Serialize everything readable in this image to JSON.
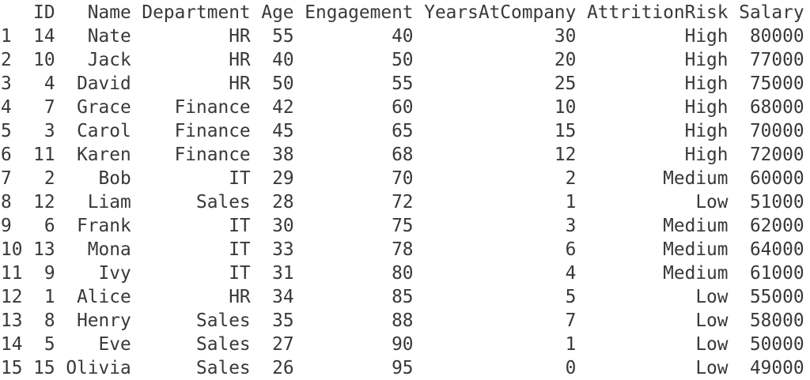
{
  "colors": {
    "text": "#383838",
    "background": "#ffffff"
  },
  "table": {
    "index_header": "",
    "columns": [
      "ID",
      "Name",
      "Department",
      "Age",
      "Engagement",
      "YearsAtCompany",
      "AttritionRisk",
      "Salary"
    ],
    "rows": [
      {
        "index": "1",
        "cells": [
          "14",
          "Nate",
          "HR",
          "55",
          "40",
          "30",
          "High",
          "80000"
        ]
      },
      {
        "index": "2",
        "cells": [
          "10",
          "Jack",
          "HR",
          "40",
          "50",
          "20",
          "High",
          "77000"
        ]
      },
      {
        "index": "3",
        "cells": [
          "4",
          "David",
          "HR",
          "50",
          "55",
          "25",
          "High",
          "75000"
        ]
      },
      {
        "index": "4",
        "cells": [
          "7",
          "Grace",
          "Finance",
          "42",
          "60",
          "10",
          "High",
          "68000"
        ]
      },
      {
        "index": "5",
        "cells": [
          "3",
          "Carol",
          "Finance",
          "45",
          "65",
          "15",
          "High",
          "70000"
        ]
      },
      {
        "index": "6",
        "cells": [
          "11",
          "Karen",
          "Finance",
          "38",
          "68",
          "12",
          "High",
          "72000"
        ]
      },
      {
        "index": "7",
        "cells": [
          "2",
          "Bob",
          "IT",
          "29",
          "70",
          "2",
          "Medium",
          "60000"
        ]
      },
      {
        "index": "8",
        "cells": [
          "12",
          "Liam",
          "Sales",
          "28",
          "72",
          "1",
          "Low",
          "51000"
        ]
      },
      {
        "index": "9",
        "cells": [
          "6",
          "Frank",
          "IT",
          "30",
          "75",
          "3",
          "Medium",
          "62000"
        ]
      },
      {
        "index": "10",
        "cells": [
          "13",
          "Mona",
          "IT",
          "33",
          "78",
          "6",
          "Medium",
          "64000"
        ]
      },
      {
        "index": "11",
        "cells": [
          "9",
          "Ivy",
          "IT",
          "31",
          "80",
          "4",
          "Medium",
          "61000"
        ]
      },
      {
        "index": "12",
        "cells": [
          "1",
          "Alice",
          "HR",
          "34",
          "85",
          "5",
          "Low",
          "55000"
        ]
      },
      {
        "index": "13",
        "cells": [
          "8",
          "Henry",
          "Sales",
          "35",
          "88",
          "7",
          "Low",
          "58000"
        ]
      },
      {
        "index": "14",
        "cells": [
          "5",
          "Eve",
          "Sales",
          "27",
          "90",
          "1",
          "Low",
          "50000"
        ]
      },
      {
        "index": "15",
        "cells": [
          "15",
          "Olivia",
          "Sales",
          "26",
          "95",
          "0",
          "Low",
          "49000"
        ]
      }
    ]
  }
}
